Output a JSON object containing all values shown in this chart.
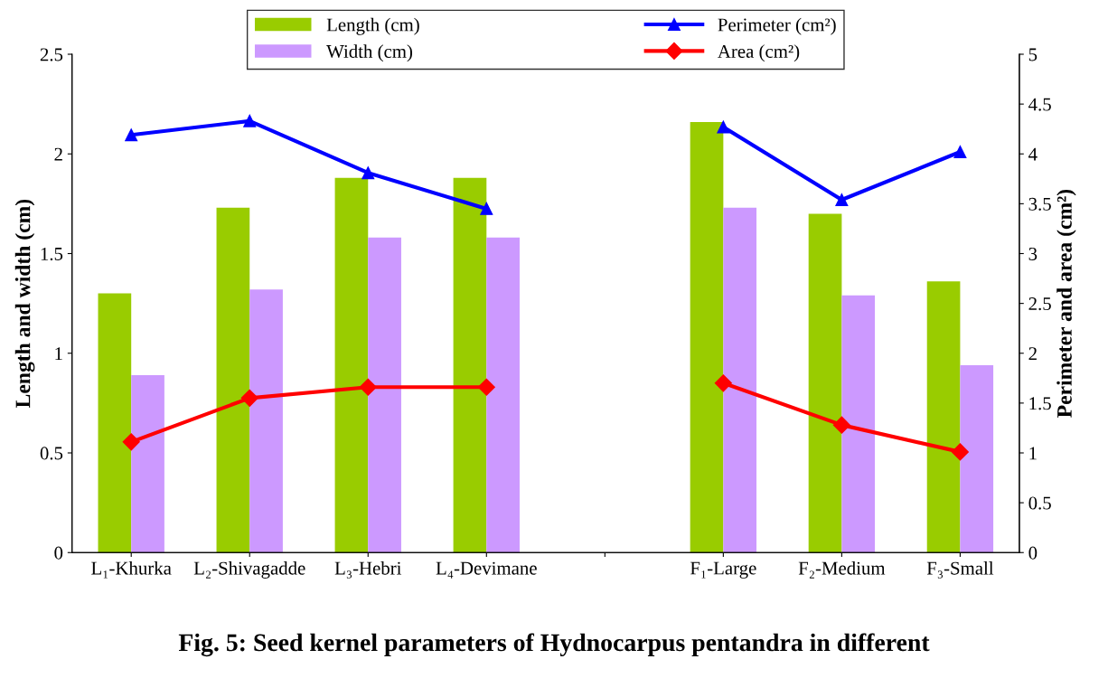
{
  "chart_data": {
    "type": "bar",
    "categories": [
      "L₁-Khurka",
      "L₂-Shivagadde",
      "L₃-Hebri",
      "L₄-Devimane",
      null,
      "F₁-Large",
      "F₂-Medium",
      "F₃-Small"
    ],
    "series": [
      {
        "name": "Length (cm)",
        "color": "#99cc00",
        "values": [
          1.3,
          1.73,
          1.88,
          1.88,
          null,
          2.16,
          1.7,
          1.36
        ]
      },
      {
        "name": "Width (cm)",
        "color": "#cc99ff",
        "values": [
          0.89,
          1.32,
          1.58,
          1.58,
          null,
          1.73,
          1.29,
          0.94
        ]
      },
      {
        "name": "Perimeter (cm²)",
        "type": "line",
        "axis": "y2",
        "marker": "triangle",
        "color": "#0000ff",
        "values": [
          4.19,
          4.33,
          3.81,
          3.45,
          null,
          4.27,
          3.54,
          4.02
        ]
      },
      {
        "name": "Area (cm²)",
        "type": "line",
        "axis": "y2",
        "marker": "diamond",
        "color": "#ff0000",
        "values": [
          1.11,
          1.55,
          1.66,
          1.66,
          null,
          1.7,
          1.28,
          1.01
        ]
      }
    ],
    "ylabel": "Length and width (cm)",
    "y2label": "Perimeter and area (cm²)",
    "ylim": [
      0,
      2.5
    ],
    "yticks": [
      0,
      0.5,
      1,
      1.5,
      2,
      2.5
    ],
    "y2lim": [
      0,
      5
    ],
    "y2ticks": [
      0,
      0.5,
      1,
      1.5,
      2,
      2.5,
      3,
      3.5,
      4,
      4.5,
      5
    ],
    "legend": "top",
    "grid": false,
    "annotations": [
      "Fig. 5: Seed kernel parameters of Hydnocarpus pentandra in different"
    ]
  }
}
